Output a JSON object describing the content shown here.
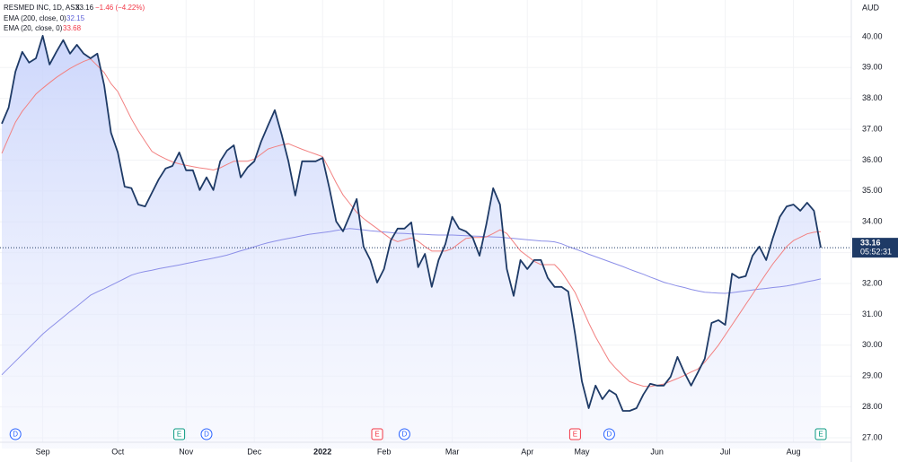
{
  "chart_data": {
    "type": "line",
    "categories": [
      null,
      null,
      null,
      null,
      null,
      null,
      "Sep",
      null,
      null,
      null,
      null,
      null,
      null,
      null,
      null,
      null,
      null,
      "Oct",
      null,
      null,
      null,
      null,
      null,
      null,
      null,
      null,
      null,
      "Nov",
      null,
      null,
      null,
      null,
      null,
      null,
      null,
      null,
      null,
      "Dec",
      null,
      null,
      null,
      null,
      null,
      null,
      null,
      null,
      null,
      "2022",
      null,
      null,
      null,
      null,
      null,
      null,
      null,
      null,
      "Feb",
      null,
      null,
      null,
      null,
      null,
      null,
      null,
      null,
      null,
      "Mar",
      null,
      null,
      null,
      null,
      null,
      null,
      null,
      null,
      null,
      null,
      "Apr",
      null,
      null,
      null,
      null,
      null,
      null,
      null,
      "May",
      null,
      null,
      null,
      null,
      null,
      null,
      null,
      null,
      null,
      null,
      "Jun",
      null,
      null,
      null,
      null,
      null,
      null,
      null,
      null,
      null,
      "Jul",
      null,
      null,
      null,
      null,
      null,
      null,
      null,
      null,
      null,
      "Aug",
      null,
      null,
      null,
      null
    ],
    "series": [
      {
        "name": "RESMED INC, 1D, ASX",
        "color": "#1e3a66",
        "values": [
          37.18,
          37.7,
          38.87,
          39.51,
          39.16,
          39.3,
          40.03,
          39.1,
          39.51,
          39.89,
          39.45,
          39.74,
          39.45,
          39.3,
          39.45,
          38.43,
          36.89,
          36.25,
          35.14,
          35.09,
          34.56,
          34.5,
          34.94,
          35.38,
          35.73,
          35.81,
          36.25,
          35.67,
          35.67,
          35.03,
          35.44,
          35.03,
          35.96,
          36.31,
          36.48,
          35.44,
          35.76,
          35.96,
          36.6,
          37.12,
          37.62,
          36.83,
          35.96,
          34.85,
          35.96,
          35.96,
          35.96,
          36.07,
          35.09,
          34.01,
          33.69,
          34.21,
          34.74,
          33.2,
          32.76,
          32.03,
          32.47,
          33.4,
          33.78,
          33.78,
          33.98,
          32.53,
          32.96,
          31.89,
          32.76,
          33.28,
          34.16,
          33.78,
          33.69,
          33.49,
          32.9,
          33.92,
          35.09,
          34.56,
          32.47,
          31.6,
          32.76,
          32.47,
          32.76,
          32.76,
          32.18,
          31.89,
          31.89,
          31.74,
          30.37,
          28.83,
          27.96,
          28.69,
          28.25,
          28.54,
          28.4,
          27.87,
          27.87,
          27.96,
          28.4,
          28.75,
          28.69,
          28.69,
          28.98,
          29.62,
          29.12,
          28.69,
          29.12,
          29.56,
          30.72,
          30.81,
          30.66,
          32.32,
          32.18,
          32.24,
          32.9,
          33.2,
          32.76,
          33.49,
          34.16,
          34.5,
          34.56,
          34.36,
          34.62,
          34.36,
          33.16
        ]
      },
      {
        "name": "EMA (200, close, 0)",
        "color": "#8c8fe8",
        "values": [
          29.04,
          29.26,
          29.48,
          29.7,
          29.92,
          30.14,
          30.36,
          30.55,
          30.73,
          30.91,
          31.09,
          31.26,
          31.44,
          31.62,
          31.73,
          31.83,
          31.94,
          32.05,
          32.16,
          32.27,
          32.34,
          32.39,
          32.43,
          32.48,
          32.52,
          32.56,
          32.6,
          32.65,
          32.69,
          32.74,
          32.78,
          32.82,
          32.87,
          32.92,
          32.99,
          33.06,
          33.12,
          33.19,
          33.26,
          33.32,
          33.37,
          33.42,
          33.46,
          33.5,
          33.55,
          33.59,
          33.62,
          33.65,
          33.68,
          33.72,
          33.75,
          33.78,
          33.76,
          33.74,
          33.71,
          33.69,
          33.67,
          33.65,
          33.63,
          33.62,
          33.61,
          33.6,
          33.59,
          33.58,
          33.57,
          33.57,
          33.57,
          33.56,
          33.55,
          33.54,
          33.53,
          33.52,
          33.51,
          33.5,
          33.48,
          33.46,
          33.44,
          33.42,
          33.4,
          33.38,
          33.37,
          33.35,
          33.29,
          33.2,
          33.12,
          33.04,
          32.95,
          32.87,
          32.79,
          32.71,
          32.63,
          32.55,
          32.46,
          32.38,
          32.3,
          32.21,
          32.13,
          32.04,
          31.98,
          31.92,
          31.87,
          31.81,
          31.76,
          31.72,
          31.7,
          31.69,
          31.68,
          31.7,
          31.73,
          31.76,
          31.79,
          31.82,
          31.84,
          31.87,
          31.89,
          31.92,
          31.96,
          32.01,
          32.06,
          32.1,
          32.15
        ]
      },
      {
        "name": "EMA (20, close, 0)",
        "color": "#f28080",
        "values": [
          36.22,
          36.73,
          37.23,
          37.58,
          37.86,
          38.14,
          38.33,
          38.51,
          38.68,
          38.83,
          38.97,
          39.09,
          39.2,
          39.28,
          39.06,
          38.84,
          38.48,
          38.22,
          37.78,
          37.33,
          36.95,
          36.61,
          36.28,
          36.15,
          36.04,
          35.94,
          35.88,
          35.83,
          35.79,
          35.75,
          35.72,
          35.68,
          35.75,
          35.86,
          35.96,
          35.96,
          35.96,
          36.03,
          36.19,
          36.36,
          36.43,
          36.49,
          36.53,
          36.44,
          36.35,
          36.27,
          36.19,
          36.11,
          35.7,
          35.26,
          34.87,
          34.59,
          34.31,
          34.11,
          33.94,
          33.78,
          33.61,
          33.45,
          33.36,
          33.42,
          33.48,
          33.37,
          33.2,
          33.05,
          33.05,
          33.05,
          33.13,
          33.3,
          33.46,
          33.49,
          33.49,
          33.51,
          33.62,
          33.74,
          33.62,
          33.34,
          33.06,
          32.89,
          32.72,
          32.61,
          32.61,
          32.61,
          32.38,
          32.05,
          31.71,
          31.22,
          30.72,
          30.27,
          29.88,
          29.49,
          29.24,
          29.02,
          28.82,
          28.74,
          28.67,
          28.66,
          28.7,
          28.74,
          28.83,
          28.92,
          29.02,
          29.13,
          29.23,
          29.45,
          29.72,
          30.0,
          30.33,
          30.66,
          30.99,
          31.32,
          31.65,
          31.99,
          32.32,
          32.64,
          32.92,
          33.2,
          33.39,
          33.5,
          33.61,
          33.66,
          33.68
        ]
      }
    ],
    "change_label": "−1.46 (−4.22%)",
    "countdown": "05:52:31",
    "currency": "AUD",
    "ylim": [
      26.65,
      41.19
    ],
    "yticks": [
      {
        "value": 27,
        "label": "27.00"
      },
      {
        "value": 28,
        "label": "28.00"
      },
      {
        "value": 29,
        "label": "29.00"
      },
      {
        "value": 30,
        "label": "30.00"
      },
      {
        "value": 31,
        "label": "31.00"
      },
      {
        "value": 32,
        "label": "32.00"
      },
      {
        "value": 33,
        "label": "33.00"
      },
      {
        "value": 34,
        "label": "34.00"
      },
      {
        "value": 35,
        "label": "35.00"
      },
      {
        "value": 36,
        "label": "36.00"
      },
      {
        "value": 37,
        "label": "37.00"
      },
      {
        "value": 38,
        "label": "38.00"
      },
      {
        "value": 39,
        "label": "39.00"
      },
      {
        "value": 40,
        "label": "40.00"
      }
    ],
    "grid": true,
    "events": [
      {
        "label": "D",
        "index": 2,
        "color": "#2962ff"
      },
      {
        "label": "E",
        "index": 26,
        "color": "#089981"
      },
      {
        "label": "D",
        "index": 30,
        "color": "#2962ff"
      },
      {
        "label": "E",
        "index": 55,
        "color": "#f23645"
      },
      {
        "label": "D",
        "index": 59,
        "color": "#2962ff"
      },
      {
        "label": "E",
        "index": 84,
        "color": "#f23645"
      },
      {
        "label": "D",
        "index": 89,
        "color": "#2962ff"
      },
      {
        "label": "E",
        "index": 120,
        "color": "#089981"
      }
    ]
  }
}
